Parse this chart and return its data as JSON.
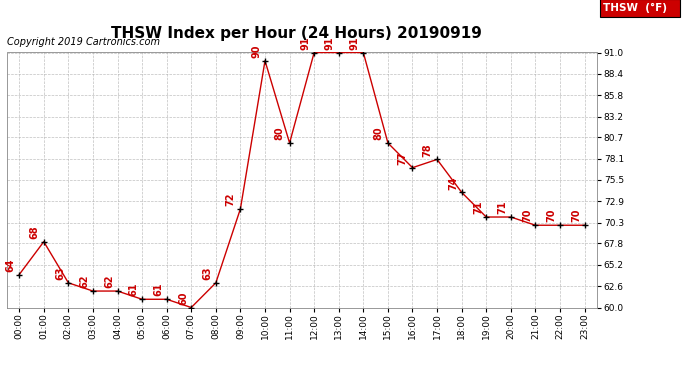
{
  "title": "THSW Index per Hour (24 Hours) 20190919",
  "copyright": "Copyright 2019 Cartronics.com",
  "legend_label": "THSW  (°F)",
  "hours": [
    0,
    1,
    2,
    3,
    4,
    5,
    6,
    7,
    8,
    9,
    10,
    11,
    12,
    13,
    14,
    15,
    16,
    17,
    18,
    19,
    20,
    21,
    22,
    23
  ],
  "values": [
    64,
    68,
    63,
    62,
    62,
    61,
    61,
    60,
    63,
    72,
    90,
    80,
    91,
    91,
    91,
    80,
    77,
    78,
    74,
    71,
    71,
    70,
    70,
    70
  ],
  "ylim": [
    60.0,
    91.0
  ],
  "yticks": [
    60.0,
    62.6,
    65.2,
    67.8,
    70.3,
    72.9,
    75.5,
    78.1,
    80.7,
    83.2,
    85.8,
    88.4,
    91.0
  ],
  "line_color": "#cc0000",
  "marker_color": "#000000",
  "label_color": "#cc0000",
  "bg_color": "#ffffff",
  "grid_color": "#b0b0b0",
  "title_fontsize": 11,
  "copyright_fontsize": 7,
  "label_fontsize": 7,
  "tick_fontsize": 6.5,
  "legend_bg": "#cc0000",
  "legend_text_color": "#ffffff",
  "legend_fontsize": 7.5
}
